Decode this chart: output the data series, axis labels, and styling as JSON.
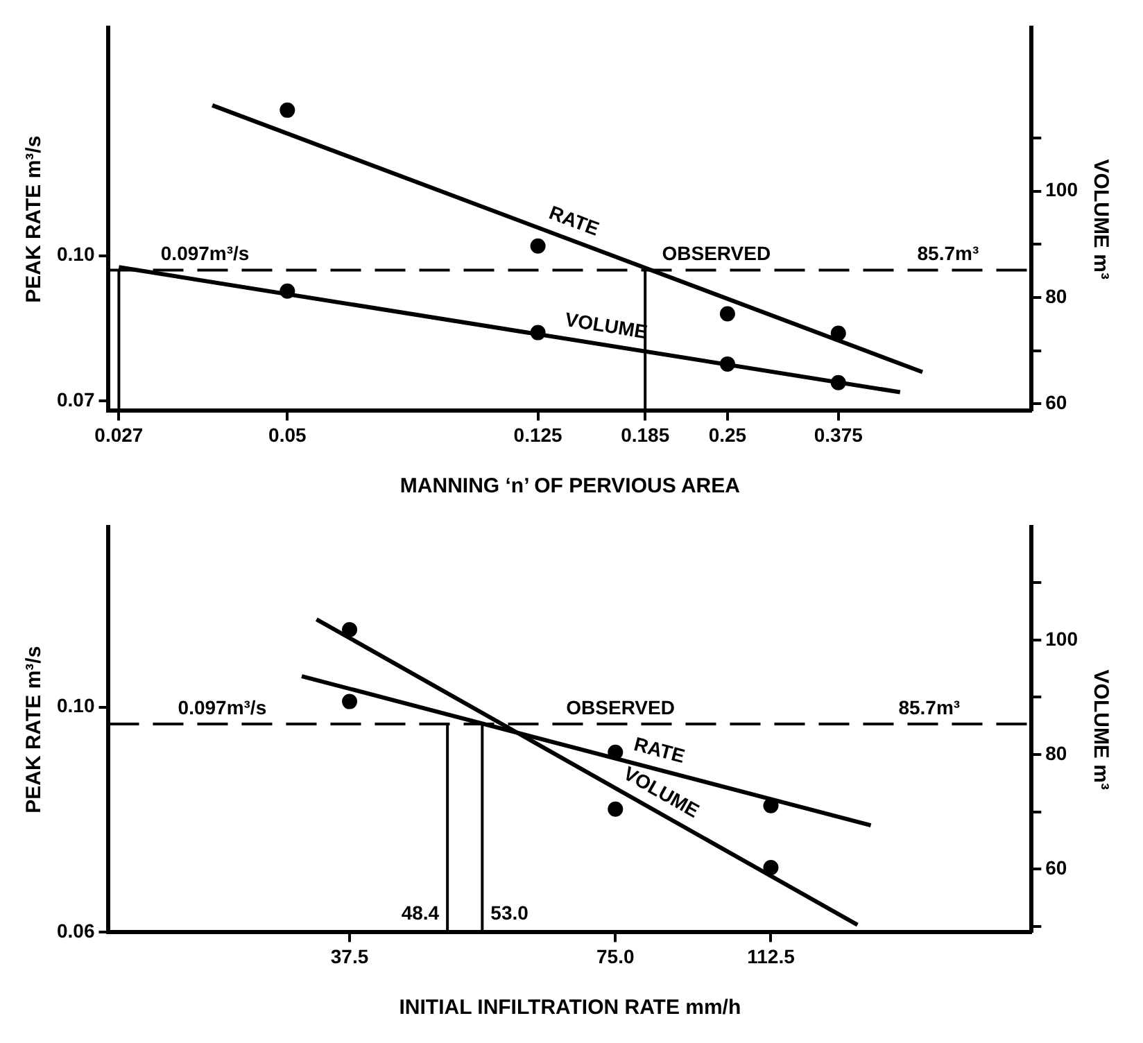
{
  "chart_data": [
    {
      "type": "line",
      "xlabel": "MANNING ‘n’ OF PERVIOUS AREA",
      "ylabel": "PEAK RATE m³/s",
      "y2label": "VOLUME m³",
      "log": "x",
      "xlim": [
        0.026,
        0.76
      ],
      "xticks": [
        0.027,
        0.05,
        0.125,
        0.185,
        0.25,
        0.375
      ],
      "ylim": [
        0.068,
        0.147
      ],
      "yticks": [
        0.07,
        {
          "value": 0.1,
          "label": "0.10"
        }
      ],
      "y2lim": [
        58.7,
        130.7
      ],
      "y2ticks": [
        60,
        {
          "value": 70,
          "label": null
        },
        80,
        {
          "value": 90,
          "label": null
        },
        100,
        {
          "value": 110,
          "label": null
        }
      ],
      "series": [
        {
          "type": "scatter",
          "marker": "circle",
          "color": "#000000",
          "x": [
            0.05,
            0.125,
            0.25,
            0.375
          ],
          "values": [
            0.13,
            0.102,
            0.088,
            0.084
          ]
        },
        {
          "type": "line",
          "marker": "none",
          "name": "RATE",
          "color": "#000000",
          "x": [
            0.038,
            0.51
          ],
          "values": [
            0.131,
            0.076
          ]
        },
        {
          "type": "scatter",
          "marker": "circle",
          "axis": "y2",
          "color": "#000000",
          "x": [
            0.05,
            0.125,
            0.25,
            0.375
          ],
          "values": [
            81.2,
            73.4,
            67.5,
            64.0
          ]
        },
        {
          "type": "line",
          "marker": "none",
          "name": "VOLUME",
          "axis": "y2",
          "color": "#000000",
          "x": [
            0.027,
            0.47
          ],
          "values": [
            85.7,
            62.2
          ]
        }
      ],
      "ref_lines": [
        {
          "axis": "y",
          "value": 0.097,
          "line_style": "dashed"
        },
        {
          "axis": "x",
          "value": 0.027
        },
        {
          "axis": "x",
          "value": 0.185
        }
      ],
      "annotations": [
        {
          "text": "0.097m³/s",
          "x": 0.037,
          "y": 0.097
        },
        {
          "text": "OBSERVED",
          "x": 0.24,
          "y": 0.097
        },
        {
          "text": "85.7m³",
          "x": 0.56,
          "y": 0.097
        }
      ]
    },
    {
      "type": "line",
      "xlabel": "INITIAL INFILTRATION RATE mm/h",
      "ylabel": "PEAK RATE m³/s",
      "y2label": "VOLUME m³",
      "log": "x",
      "xlim": [
        20,
        222
      ],
      "xticks": [
        37.5,
        {
          "value": 75,
          "label": "75.0"
        },
        112.5
      ],
      "ylim": [
        0.06,
        0.132
      ],
      "yticks": [
        0.06,
        {
          "value": 0.1,
          "label": "0.10"
        }
      ],
      "y2lim": [
        49,
        119.7
      ],
      "y2ticks": [
        {
          "value": 50,
          "label": null
        },
        60,
        {
          "value": 70,
          "label": null
        },
        80,
        {
          "value": 90,
          "label": null
        },
        100,
        {
          "value": 110,
          "label": null
        }
      ],
      "series": [
        {
          "type": "scatter",
          "marker": "circle",
          "color": "#000000",
          "x": [
            37.5,
            75,
            112.5
          ],
          "values": [
            0.101,
            0.092,
            0.0825
          ]
        },
        {
          "type": "line",
          "marker": "none",
          "name": "RATE",
          "color": "#000000",
          "x": [
            33.1,
            146
          ],
          "values": [
            0.1055,
            0.079
          ]
        },
        {
          "type": "scatter",
          "marker": "circle",
          "axis": "y2",
          "color": "#000000",
          "x": [
            37.5,
            75,
            112.5
          ],
          "values": [
            101.8,
            70.5,
            60.3
          ]
        },
        {
          "type": "line",
          "marker": "none",
          "name": "VOLUME",
          "axis": "y2",
          "color": "#000000",
          "x": [
            34.4,
            141
          ],
          "values": [
            103.6,
            50.3
          ]
        }
      ],
      "ref_lines": [
        {
          "axis": "y",
          "value": 0.097,
          "line_style": "dashed"
        },
        {
          "axis": "x",
          "value": 48.4,
          "label": "48.4"
        },
        {
          "axis": "x",
          "value": 53,
          "label": "53.0"
        }
      ],
      "annotations": [
        {
          "text": "0.097m³/s",
          "x": 26.9,
          "y": 0.097
        },
        {
          "text": "OBSERVED",
          "x": 76,
          "y": 0.097
        },
        {
          "text": "85.7m³",
          "x": 170,
          "y": 0.097
        }
      ]
    }
  ]
}
